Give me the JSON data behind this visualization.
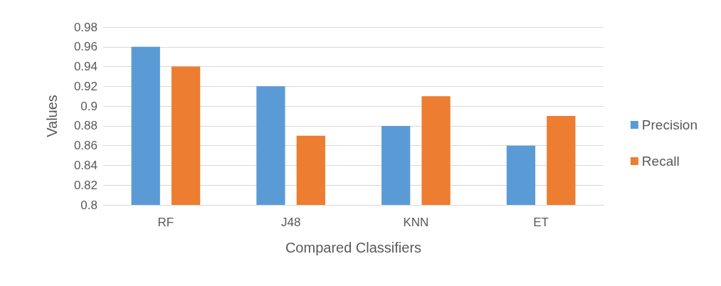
{
  "chart_data": {
    "type": "bar",
    "xlabel": "Compared Classifiers",
    "ylabel": "Values",
    "categories": [
      "RF",
      "J48",
      "KNN",
      "ET"
    ],
    "series": [
      {
        "name": "Precision",
        "color": "#5b9bd5",
        "values": [
          0.96,
          0.92,
          0.88,
          0.86
        ]
      },
      {
        "name": "Recall",
        "color": "#ed7d31",
        "values": [
          0.94,
          0.87,
          0.91,
          0.89
        ]
      }
    ],
    "ylim": [
      0.8,
      0.98
    ],
    "yticks": [
      0.8,
      0.82,
      0.84,
      0.86,
      0.88,
      0.9,
      0.92,
      0.94,
      0.96,
      0.98
    ],
    "grid": "y",
    "legend": "right"
  }
}
